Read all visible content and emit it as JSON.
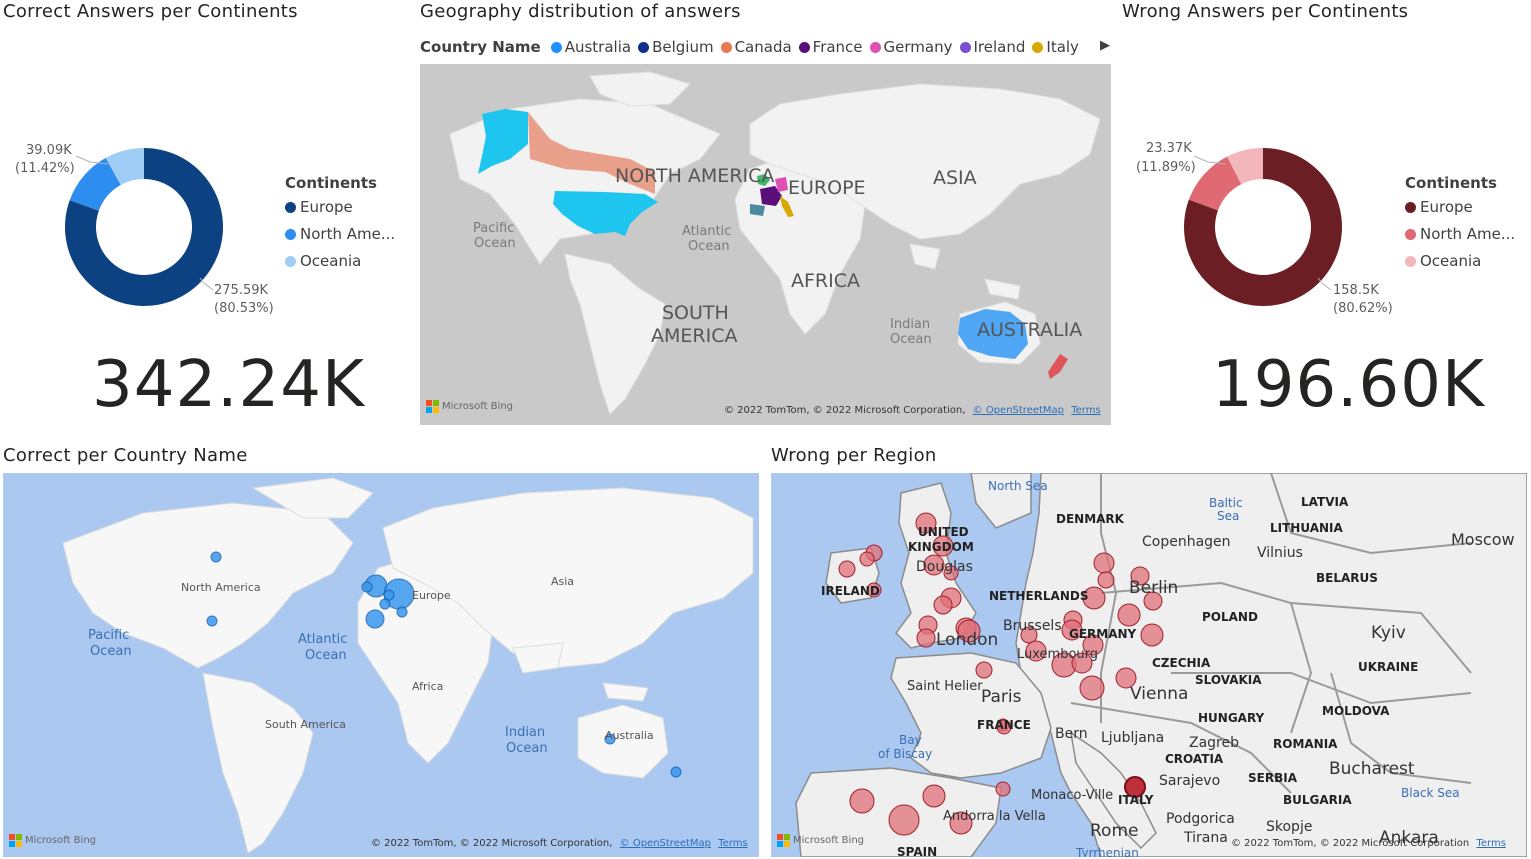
{
  "titles": {
    "correct_continents": "Correct Answers per Continents",
    "geo_distribution": "Geography distribution of answers",
    "wrong_continents": "Wrong Answers per Continents",
    "correct_country": "Correct per Country Name",
    "wrong_region": "Wrong per Region"
  },
  "correct_donut": {
    "legend_title": "Continents",
    "legend": [
      "Europe",
      "North Ame...",
      "Oceania"
    ],
    "callout_small_value": "39.09K",
    "callout_small_pct": "(11.42%)",
    "callout_large_value": "275.59K",
    "callout_large_pct": "(80.53%)",
    "total": "342.24K",
    "colors": [
      "#0d4282",
      "#2e8ef0",
      "#9fcdf5"
    ]
  },
  "wrong_donut": {
    "legend_title": "Continents",
    "legend": [
      "Europe",
      "North Ame...",
      "Oceania"
    ],
    "callout_small_value": "23.37K",
    "callout_small_pct": "(11.89%)",
    "callout_large_value": "158.5K",
    "callout_large_pct": "(80.62%)",
    "total": "196.60K",
    "colors": [
      "#6b1f24",
      "#e06a73",
      "#f2b6bb"
    ]
  },
  "geo_legend": {
    "title": "Country Name",
    "items": [
      {
        "label": "Australia",
        "color": "#1e90ff"
      },
      {
        "label": "Belgium",
        "color": "#0d2e8c"
      },
      {
        "label": "Canada",
        "color": "#e8784f"
      },
      {
        "label": "France",
        "color": "#5a0f7a"
      },
      {
        "label": "Germany",
        "color": "#e04fb4"
      },
      {
        "label": "Ireland",
        "color": "#7a4fd4"
      },
      {
        "label": "Italy",
        "color": "#d9a800"
      }
    ]
  },
  "map_labels": {
    "geo": {
      "north_america": "NORTH AMERICA",
      "europe": "EUROPE",
      "asia": "ASIA",
      "africa": "AFRICA",
      "south_america_1": "SOUTH",
      "south_america_2": "AMERICA",
      "australia": "AUSTRALIA",
      "pacific_1": "Pacific",
      "pacific_2": "Ocean",
      "atlantic_1": "Atlantic",
      "atlantic_2": "Ocean",
      "indian_1": "Indian",
      "indian_2": "Ocean"
    },
    "correct": {
      "north_america": "North America",
      "europe": "Europe",
      "asia": "Asia",
      "africa": "Africa",
      "south_america": "South America",
      "australia": "Australia",
      "pacific_1": "Pacific",
      "pacific_2": "Ocean",
      "atlantic_1": "Atlantic",
      "atlantic_2": "Ocean",
      "indian_1": "Indian",
      "indian_2": "Ocean"
    },
    "wrong": {
      "north_sea": "North Sea",
      "baltic_1": "Baltic",
      "baltic_2": "Sea",
      "latvia": "LATVIA",
      "denmark": "DENMARK",
      "lithuania": "LITHUANIA",
      "moscow": "Moscow",
      "uk_1": "UNITED",
      "uk_2": "KINGDOM",
      "copenhagen": "Copenhagen",
      "vilnius": "Vilnius",
      "douglas": "Douglas",
      "ireland": "IRELAND",
      "berlin": "Berlin",
      "belarus": "BELARUS",
      "netherlands": "NETHERLANDS",
      "poland": "POLAND",
      "brussels": "Brussels",
      "kyiv": "Kyiv",
      "germany": "GERMANY",
      "london": "London",
      "luxembourg": "Luxembourg",
      "ukraine": "UKRAINE",
      "czechia": "CZECHIA",
      "saint_helier": "Saint Helier",
      "slovakia": "SLOVAKIA",
      "paris": "Paris",
      "vienna": "Vienna",
      "moldova": "MOLDOVA",
      "hungary": "HUNGARY",
      "france": "FRANCE",
      "bay_1": "Bay",
      "bay_2": "of Biscay",
      "bern": "Bern",
      "ljubljana": "Ljubljana",
      "zagreb": "Zagreb",
      "romania": "ROMANIA",
      "croatia": "CROATIA",
      "bucharest": "Bucharest",
      "sarajevo": "Sarajevo",
      "serbia": "SERBIA",
      "monaco": "Monaco-Ville",
      "italy": "ITALY",
      "black_sea": "Black Sea",
      "bulgaria": "BULGARIA",
      "andorra": "Andorra la Vella",
      "podgorica": "Podgorica",
      "skopje": "Skopje",
      "rome": "Rome",
      "tirana": "Tirana",
      "ankara": "Ankara",
      "spain": "SPAIN",
      "tyrrhenian": "Tyrrhenian"
    }
  },
  "attribution": {
    "bing": "Microsoft Bing",
    "copyright": "© 2022 TomTom, © 2022 Microsoft Corporation,",
    "osm": "© OpenStreetMap",
    "terms": "Terms",
    "copyright_short": "© 2022 TomTom, © 2022 Microsoft Corporation"
  },
  "chart_data": [
    {
      "type": "pie",
      "title": "Correct Answers per Continents",
      "categories": [
        "Europe",
        "North America",
        "Oceania"
      ],
      "values": [
        275.59,
        39.09,
        27.56
      ],
      "units": "K",
      "percentages": [
        80.53,
        11.42,
        8.05
      ],
      "total": "342.24K",
      "legend_position": "right"
    },
    {
      "type": "pie",
      "title": "Wrong Answers per Continents",
      "categories": [
        "Europe",
        "North America",
        "Oceania"
      ],
      "values": [
        158.5,
        23.37,
        14.73
      ],
      "units": "K",
      "percentages": [
        80.62,
        11.89,
        7.49
      ],
      "total": "196.60K",
      "legend_position": "right"
    }
  ]
}
